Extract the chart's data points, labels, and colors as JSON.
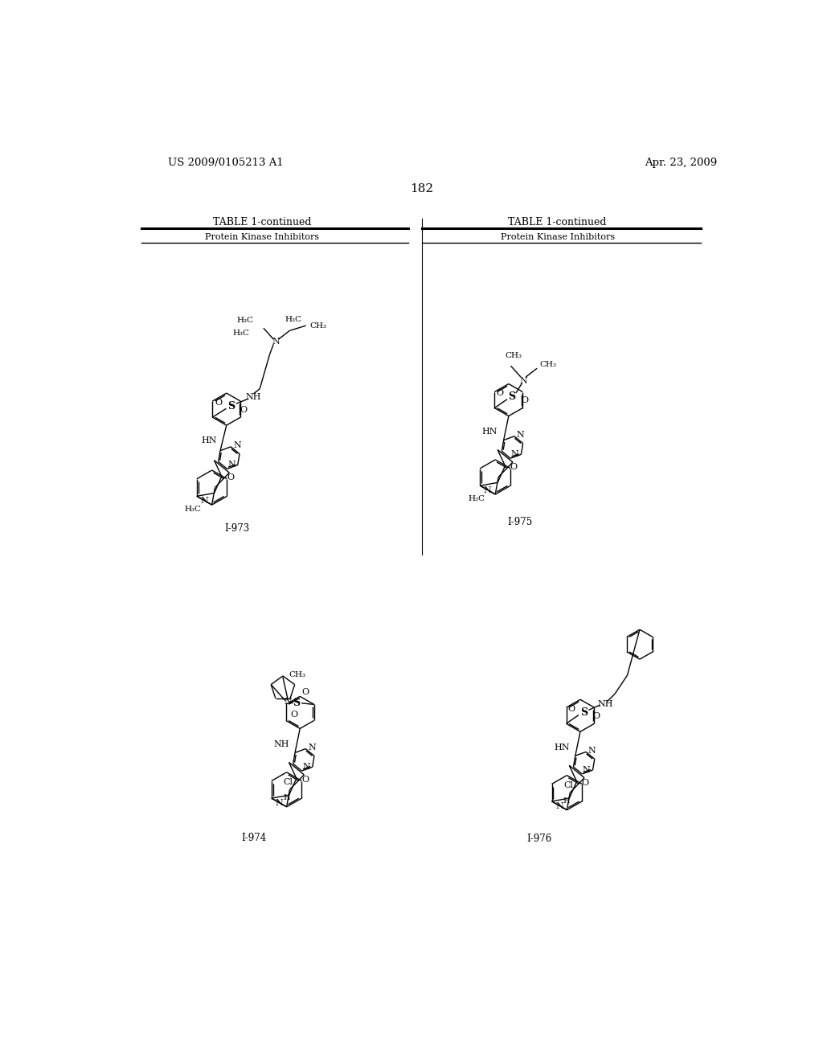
{
  "page_number": "182",
  "patent_number": "US 2009/0105213 A1",
  "patent_date": "Apr. 23, 2009",
  "table_title": "TABLE 1-continued",
  "table_subtitle": "Protein Kinase Inhibitors",
  "compound_labels": [
    "I-973",
    "I-974",
    "I-975",
    "I-976"
  ],
  "background_color": "#ffffff",
  "text_color": "#000000"
}
